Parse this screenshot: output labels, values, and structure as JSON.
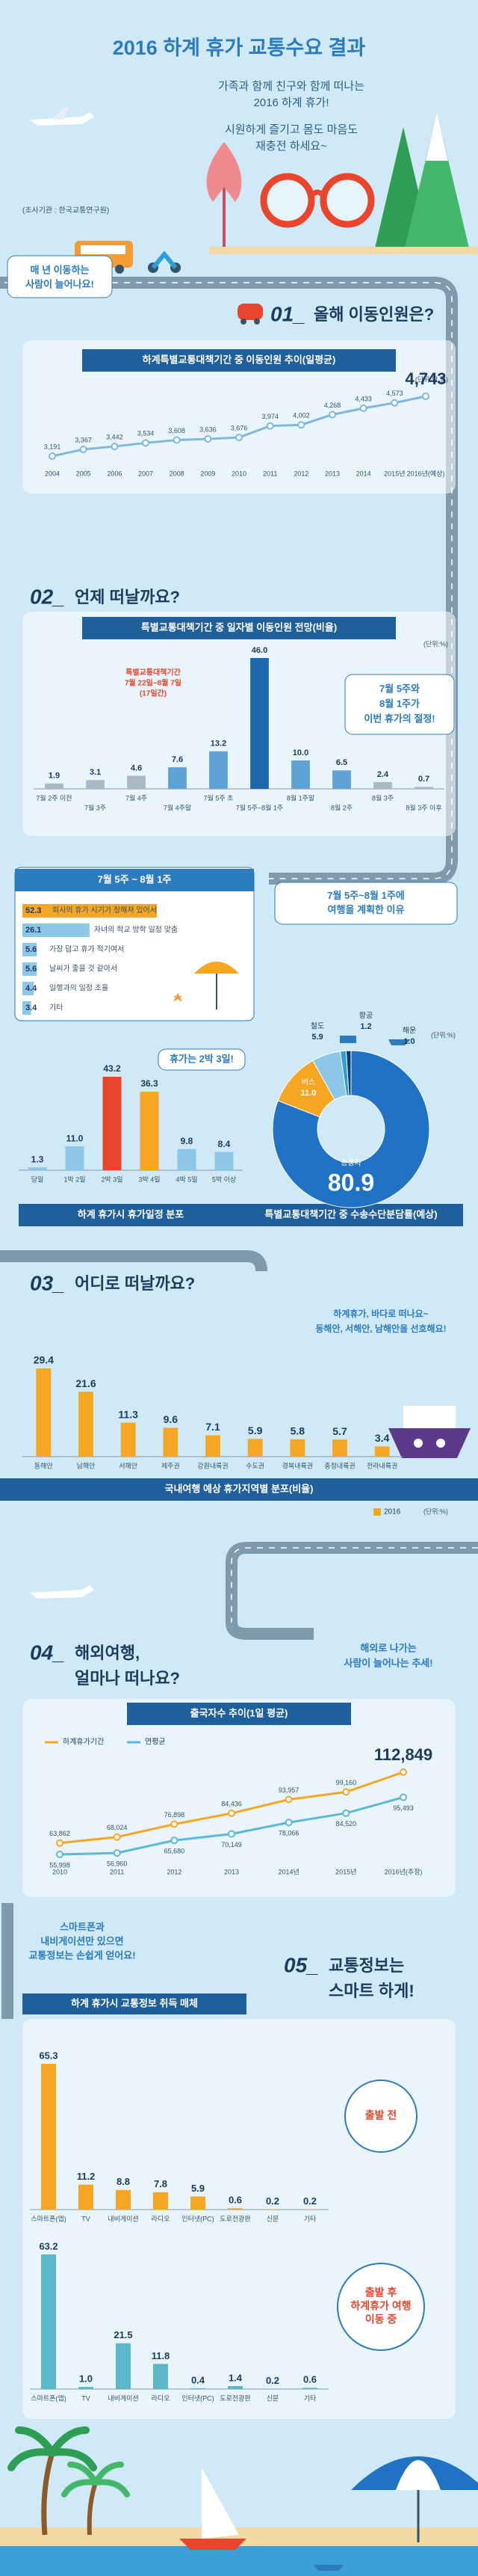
{
  "header": {
    "title": "2016 하계 휴가 교통수요 결과",
    "intro": [
      "가족과 함께 친구와 함께 떠나는",
      "2016 하계 휴가!",
      "시원하게 즐기고 몸도 마음도",
      "재충전 하세요~"
    ],
    "source": "(조사기관 : 한국교통연구원)"
  },
  "sections": [
    {
      "number": "01_",
      "heading": [
        "올해 이동인원은?"
      ],
      "bubble": [
        "매 년 이동하는",
        "사람이 늘어나요!"
      ]
    },
    {
      "number": "02_",
      "heading": [
        "언제 떠날까요?"
      ],
      "bubble": [
        "7월 5주와",
        "8월 1주가",
        "이번 휴가의 절정!"
      ]
    },
    {
      "number": "03_",
      "heading": [
        "어디로 떠날까요?"
      ],
      "bubble": [
        "하계휴가, 바다로 떠나요~",
        "동해안, 서해안, 남해안을 선호해요!"
      ]
    },
    {
      "number": "04_",
      "heading": [
        "해외여행,",
        "얼마나 떠나요?"
      ],
      "bubble": [
        "해외로 나가는",
        "사람이 늘어나는 추세!"
      ]
    },
    {
      "number": "05_",
      "heading": [
        "교통정보는",
        "스마트 하게!"
      ],
      "bubble": [
        "스마트폰과",
        "내비게이션만 있으면",
        "교통정보는 손쉽게 얻어요!"
      ],
      "chart_title": "하계 휴가시 교통정보 취득 매체"
    }
  ],
  "chart_data": [
    {
      "type": "line",
      "title": "하계특별교통대책기간 중 이동인원 추이(일평균)",
      "unit": "(단위:만 명)",
      "color": "#7fb8dc",
      "categories": [
        "2004",
        "2005",
        "2006",
        "2007",
        "2008",
        "2009",
        "2010",
        "2011",
        "2012",
        "2013",
        "2014",
        "2015년",
        "2016년(예상)"
      ],
      "values": [
        3191,
        3367,
        3442,
        3534,
        3608,
        3636,
        3676,
        3974,
        4002,
        4268,
        4433,
        4573,
        4743
      ],
      "value_labels": [
        "3,191",
        "3,367",
        "3,442",
        "3,534",
        "3,608",
        "3,636",
        "3,676",
        "3,974",
        "4,002",
        "4,268",
        "4,433",
        "4,573",
        "4,743"
      ]
    },
    {
      "type": "bar",
      "title": "특별교통대책기간 중 일자별 이동인원 전망(비율)",
      "unit": "(단위:%)",
      "callout": [
        "특별교통대책기간",
        "7월 22일~8월 7일",
        "(17일간)"
      ],
      "categories": [
        "7월 2주 이전",
        "7월 3주",
        "7월 4주",
        "7월 4주말",
        "7월 5주 초",
        "7월 5주~8월 1주",
        "8월 1주말",
        "8월 2주",
        "8월 3주",
        "8월 3주 이후"
      ],
      "values": [
        1.9,
        3.1,
        4.6,
        7.6,
        13.2,
        46.0,
        10.0,
        6.5,
        2.4,
        0.7
      ],
      "value_labels": [
        "1.9",
        "3.1",
        "4.6",
        "7.6",
        "13.2",
        "46.0",
        "10.0",
        "6.5",
        "2.4",
        "0.7"
      ],
      "colors": [
        "#a9b9c6",
        "#a9b9c6",
        "#a9b9c6",
        "#5fa3d6",
        "#5fa3d6",
        "#1f66ad",
        "#5fa3d6",
        "#5fa3d6",
        "#a9b9c6",
        "#a9b9c6"
      ]
    },
    {
      "type": "hbar",
      "title": "7월 5주 ~ 8월 1주",
      "note": [
        "7월 5주~8월 1주에",
        "여행을 계획한 이유"
      ],
      "categories": [
        "회사의 휴가 시기가 정해져 있어서",
        "자녀의 학교 방학 일정 맞춤",
        "가장 덥고 휴가 적기여서",
        "날씨가 좋을 것 같아서",
        "일행과의 일정 조율",
        "기타"
      ],
      "values": [
        52.3,
        26.1,
        5.6,
        5.6,
        4.4,
        3.4
      ],
      "colors": [
        "#f5a623",
        "#8cc6e8",
        "#8cc6e8",
        "#8cc6e8",
        "#8cc6e8",
        "#8cc6e8"
      ]
    },
    {
      "type": "bar",
      "title": "하계 휴가시 휴가일정 분포",
      "note": [
        "휴가는 2박 3일!"
      ],
      "categories": [
        "당일",
        "1박 2일",
        "2박 3일",
        "3박 4일",
        "4박 5일",
        "5박 이상"
      ],
      "values": [
        1.3,
        11.0,
        43.2,
        36.3,
        9.8,
        8.4
      ],
      "value_labels": [
        "1.3",
        "11.0",
        "43.2",
        "36.3",
        "9.8",
        "8.4"
      ],
      "colors": [
        "#8cc6e8",
        "#8cc6e8",
        "#e8452c",
        "#f5a623",
        "#8cc6e8",
        "#8cc6e8"
      ]
    },
    {
      "type": "pie",
      "title": "특별교통대책기간 중 수송수단분담률(예상)",
      "unit": "(단위:%)",
      "categories": [
        "승용차",
        "버스",
        "철도",
        "항공",
        "해운"
      ],
      "values": [
        80.9,
        11.0,
        5.9,
        1.2,
        1.0
      ],
      "value_labels": [
        "80.9",
        "11.0",
        "5.9",
        "1.2",
        "1.0"
      ],
      "colors": [
        "#1f72c4",
        "#f5a623",
        "#8cc6e8",
        "#2b9fd9",
        "#0b3d73"
      ]
    },
    {
      "type": "bar",
      "title": "국내여행 예상 휴가지역별 분포(비율)",
      "unit": "(단위:%)",
      "legend": "2016",
      "color": "#f5a623",
      "categories": [
        "동해안",
        "남해안",
        "서해안",
        "제주권",
        "강원내륙권",
        "수도권",
        "경북내륙권",
        "충청내륙권",
        "전라내륙권"
      ],
      "values": [
        29.4,
        21.6,
        11.3,
        9.6,
        7.1,
        5.9,
        5.8,
        5.7,
        3.4
      ]
    },
    {
      "type": "line",
      "title": "출국자수 추이(1일 평균)",
      "categories": [
        "2010",
        "2011",
        "2012",
        "2013",
        "2014년",
        "2015년",
        "2016년(추정)"
      ],
      "series": [
        {
          "name": "하계휴가기간",
          "color": "#f5a623",
          "values": [
            63862,
            68024,
            76898,
            84436,
            93957,
            99160,
            112849
          ],
          "value_labels": [
            "63,862",
            "68,024",
            "76,898",
            "84,436",
            "93,957",
            "99,160",
            "112,849"
          ]
        },
        {
          "name": "연평균",
          "color": "#5bb8d9",
          "values": [
            55998,
            56960,
            65680,
            70149,
            78066,
            84520,
            95493
          ],
          "value_labels": [
            "55,998",
            "56,960",
            "65,680",
            "70,149",
            "78,066",
            "84,520",
            "95,493"
          ]
        }
      ]
    },
    {
      "type": "bar",
      "title": "출발 전",
      "color": "#f5a623",
      "categories": [
        "스마트폰(앱)",
        "TV",
        "내비게이션",
        "라디오",
        "인터넷(PC)",
        "도로전광판",
        "신문",
        "기타"
      ],
      "values": [
        65.3,
        11.2,
        8.8,
        7.8,
        5.9,
        0.6,
        0.2,
        0.2
      ]
    },
    {
      "type": "bar",
      "title": [
        "출발 후",
        "하계휴가 여행",
        "이동 중"
      ],
      "color": "#5bb8c9",
      "categories": [
        "스마트폰(앱)",
        "TV",
        "내비게이션",
        "라디오",
        "인터넷(PC)",
        "도로전광판",
        "신문",
        "기타"
      ],
      "values": [
        63.2,
        1.0,
        21.5,
        11.8,
        0.4,
        1.4,
        0.2,
        0.6
      ],
      "value_labels": [
        "63.2",
        "1.0",
        "21.5",
        "11.8",
        "0.4",
        "1.4",
        "0.2",
        "0.6"
      ]
    }
  ]
}
